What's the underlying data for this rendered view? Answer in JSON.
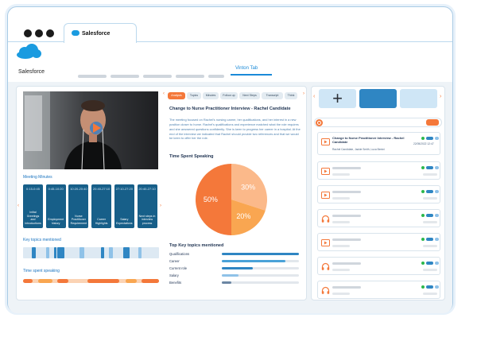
{
  "browser": {
    "tab_title": "Salesforce"
  },
  "app": {
    "brand": "Salesforce",
    "active_nav": "Vinton Tab"
  },
  "meeting_minutes": {
    "title": "Meeting Minutes",
    "items": [
      {
        "time": "0:15-0:45",
        "label": "Initial Greetings and Introductions"
      },
      {
        "time": "0:45-10:20",
        "label": "Employment history"
      },
      {
        "time": "10:20-20:40",
        "label": "Nurse Practitioner Requirement"
      },
      {
        "time": "20:40-27:10",
        "label": "Career Highlights"
      },
      {
        "time": "27:10-27:20",
        "label": "Salary Expectations"
      },
      {
        "time": "20:40-27:10",
        "label": "Next steps in interview process"
      }
    ]
  },
  "key_topics_label": "Key topics mentioned",
  "time_spent_label": "Time spent speaking",
  "tabs": [
    "Analysis",
    "Topics",
    "Minutes",
    "Follow up",
    "Next Steps",
    "Transcript",
    "Think"
  ],
  "main": {
    "title": "Change to Nurse Practitioner Interview - Rachel Candidate",
    "summary": "The meeting focused on Rachel's nursing career, her qualifications, and her interest in a new position closer to home. Rachel's qualifications and experience matched what the role requires and she answered questions confidently. She is keen to progress her career in a hospital. At the end of the interview we indicated that Rachel should provide two references and that we would be keen to offer her the role.",
    "time_spent_title": "Time Spent Speaking",
    "top_topics_title": "Top Key topics mentioned"
  },
  "chart_data": {
    "type": "pie",
    "title": "Time Spent Speaking",
    "labels": [
      "50%",
      "30%",
      "20%"
    ],
    "values": [
      50,
      30,
      20
    ],
    "colors": [
      "#f4783a",
      "#fbb98a",
      "#f9a651"
    ]
  },
  "topics": [
    {
      "label": "Qualifications",
      "value": 1.0
    },
    {
      "label": "Career",
      "value": 0.82
    },
    {
      "label": "Current role",
      "value": 0.4
    },
    {
      "label": "Salary",
      "value": 0.22
    },
    {
      "label": "Benefits",
      "value": 0.12
    }
  ],
  "right": {
    "first_title": "Change to Nurse Practitioner Interview - Rachel Candidate",
    "first_date": "22/05/2022 12:47",
    "first_people": "Rachel Candidate, Jackie Smith, Luca Benini",
    "items": [
      "video",
      "video",
      "headphones",
      "video",
      "headphones",
      "headphones"
    ]
  },
  "colors": {
    "accent": "#f4783a",
    "brand": "#1a9be0",
    "dark_blue": "#175f89",
    "mid_blue": "#2f86c3"
  }
}
